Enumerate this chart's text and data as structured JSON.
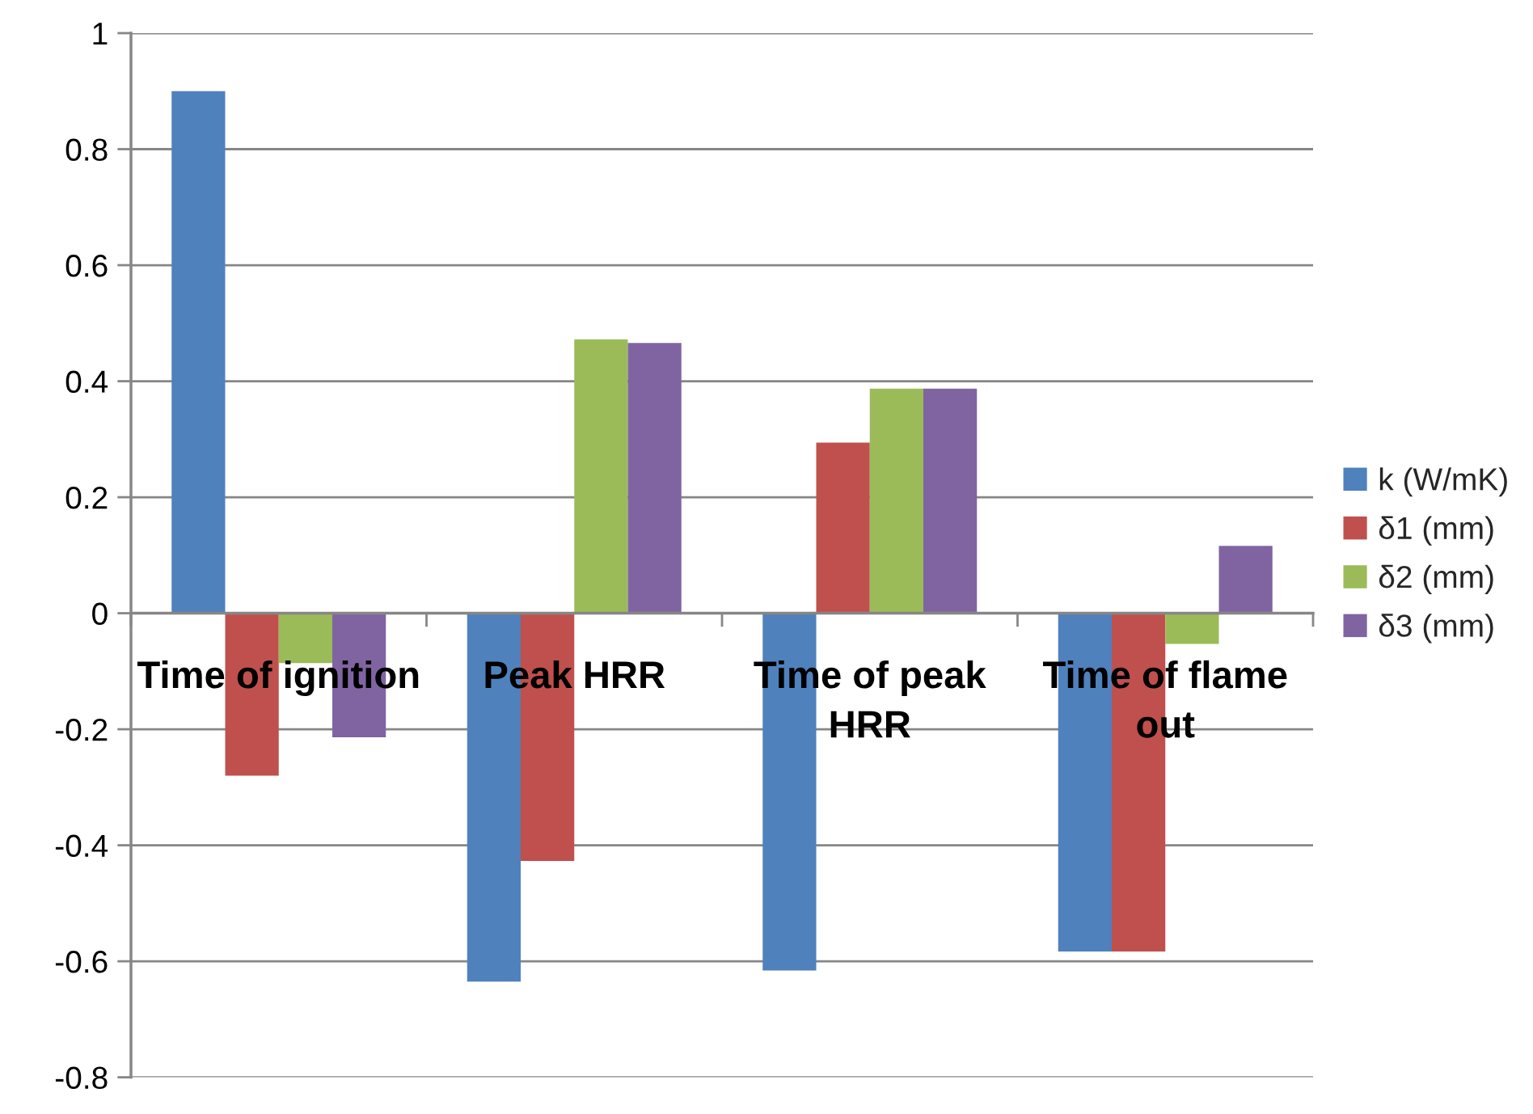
{
  "chart_data": {
    "type": "bar",
    "categories": [
      "Time of ignition",
      "Peak HRR",
      "Time of peak HRR",
      "Time of flame out"
    ],
    "series": [
      {
        "name": "k (W/mK)",
        "color": "#4f81bd",
        "values": [
          0.9,
          -0.635,
          -0.616,
          -0.583
        ]
      },
      {
        "name": "δ1 (mm)",
        "color": "#c0504d",
        "values": [
          -0.28,
          -0.427,
          0.294,
          -0.583
        ]
      },
      {
        "name": "δ2 (mm)",
        "color": "#9bbb59",
        "values": [
          -0.086,
          0.472,
          0.387,
          -0.053
        ]
      },
      {
        "name": "δ3 (mm)",
        "color": "#8064a2",
        "values": [
          -0.214,
          0.466,
          0.387,
          0.116
        ]
      }
    ],
    "ylim": [
      -0.8,
      1
    ],
    "yticks": [
      -0.8,
      -0.6,
      -0.4,
      -0.2,
      0,
      0.2,
      0.4,
      0.6,
      0.8,
      1
    ],
    "grid": "y",
    "legend": "right"
  }
}
